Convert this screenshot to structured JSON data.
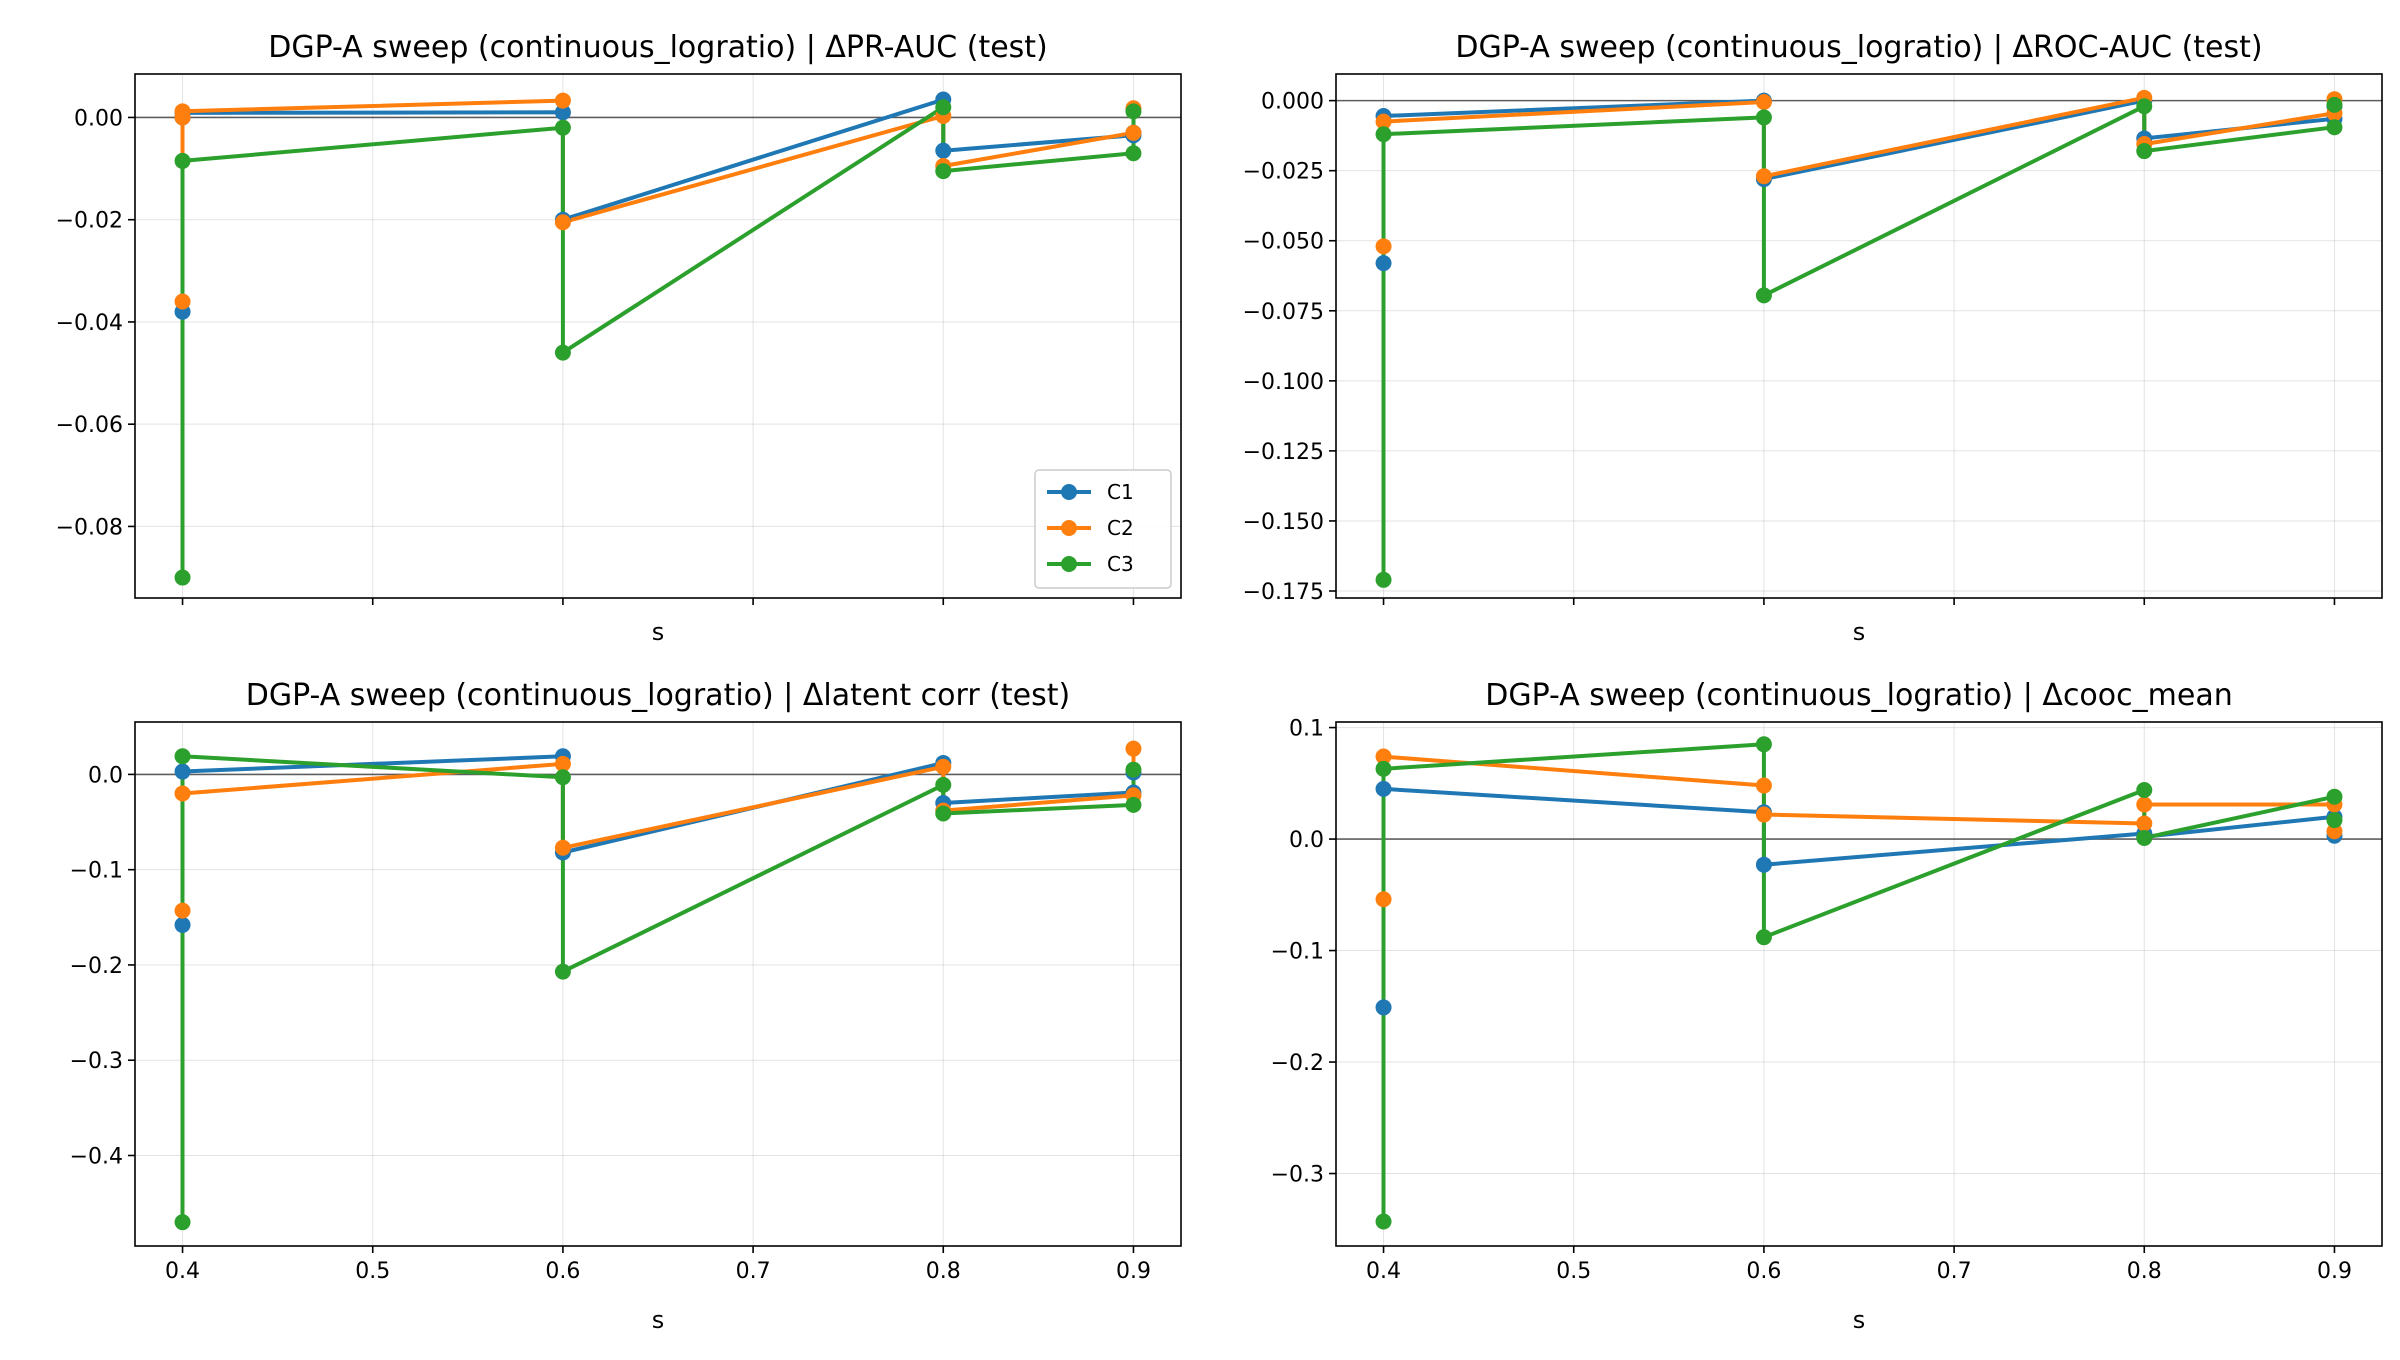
{
  "chart_data": [
    {
      "type": "line",
      "title": "DGP-A sweep (continuous_logratio) | ΔPR-AUC (test)",
      "xlabel": "s",
      "ylabel": "",
      "xlim": [
        0.375,
        0.925
      ],
      "ylim": [
        -0.094,
        0.0085
      ],
      "xticks": [
        0.4,
        0.5,
        0.6,
        0.7,
        0.8,
        0.9
      ],
      "xticklabels": [
        "",
        "",
        "",
        "",
        "",
        ""
      ],
      "yticks": [
        0.0,
        -0.02,
        -0.04,
        -0.06,
        -0.08
      ],
      "yticklabels": [
        "0.00",
        "−0.02",
        "−0.04",
        "−0.06",
        "−0.08"
      ],
      "grid": true,
      "hline": 0,
      "legend": {
        "position": "lower-right",
        "entries": [
          "C1",
          "C2",
          "C3"
        ]
      },
      "series": [
        {
          "name": "C1",
          "color": "#1f77b4",
          "x": [
            0.4,
            0.4,
            0.4,
            0.6,
            0.6,
            0.8,
            0.8,
            0.9,
            0.9
          ],
          "y": [
            -0.038,
            0.0,
            0.0009,
            0.001,
            -0.02,
            0.0035,
            -0.0065,
            -0.0035,
            -0.003
          ]
        },
        {
          "name": "C2",
          "color": "#ff7f0e",
          "x": [
            0.4,
            0.4,
            0.4,
            0.6,
            0.6,
            0.8,
            0.8,
            0.9,
            0.9
          ],
          "y": [
            -0.036,
            0.0,
            0.0012,
            0.0033,
            -0.0205,
            0.0003,
            -0.0095,
            -0.003,
            0.0018
          ]
        },
        {
          "name": "C3",
          "color": "#2ca02c",
          "x": [
            0.4,
            0.4,
            0.6,
            0.6,
            0.8,
            0.8,
            0.9,
            0.9
          ],
          "y": [
            -0.09,
            -0.0085,
            -0.002,
            -0.046,
            0.002,
            -0.0105,
            -0.007,
            0.0012
          ]
        }
      ]
    },
    {
      "type": "line",
      "title": "DGP-A sweep (continuous_logratio) | ΔROC-AUC (test)",
      "xlabel": "s",
      "ylabel": "",
      "xlim": [
        0.375,
        0.925
      ],
      "ylim": [
        -0.1775,
        0.0095
      ],
      "xticks": [
        0.4,
        0.5,
        0.6,
        0.7,
        0.8,
        0.9
      ],
      "xticklabels": [
        "",
        "",
        "",
        "",
        "",
        ""
      ],
      "yticks": [
        0.0,
        -0.025,
        -0.05,
        -0.075,
        -0.1,
        -0.125,
        -0.15,
        -0.175
      ],
      "yticklabels": [
        "0.000",
        "−0.025",
        "−0.050",
        "−0.075",
        "−0.100",
        "−0.125",
        "−0.150",
        "−0.175"
      ],
      "grid": true,
      "hline": 0,
      "series": [
        {
          "name": "C1",
          "color": "#1f77b4",
          "x": [
            0.4,
            0.4,
            0.6,
            0.6,
            0.8,
            0.8,
            0.9,
            0.9
          ],
          "y": [
            -0.058,
            -0.0055,
            0.0,
            -0.028,
            0.0,
            -0.0135,
            -0.0065,
            -0.002
          ]
        },
        {
          "name": "C2",
          "color": "#ff7f0e",
          "x": [
            0.4,
            0.4,
            0.6,
            0.6,
            0.8,
            0.8,
            0.9,
            0.9
          ],
          "y": [
            -0.052,
            -0.0075,
            -0.0005,
            -0.027,
            0.001,
            -0.0155,
            -0.0045,
            0.0005
          ]
        },
        {
          "name": "C3",
          "color": "#2ca02c",
          "x": [
            0.4,
            0.4,
            0.6,
            0.6,
            0.8,
            0.8,
            0.9,
            0.9
          ],
          "y": [
            -0.171,
            -0.012,
            -0.006,
            -0.0695,
            -0.002,
            -0.018,
            -0.0095,
            -0.0015
          ]
        }
      ]
    },
    {
      "type": "line",
      "title": "DGP-A sweep (continuous_logratio) | Δlatent corr (test)",
      "xlabel": "s",
      "ylabel": "",
      "xlim": [
        0.375,
        0.925
      ],
      "ylim": [
        -0.495,
        0.055
      ],
      "xticks": [
        0.4,
        0.5,
        0.6,
        0.7,
        0.8,
        0.9
      ],
      "xticklabels": [
        "0.4",
        "0.5",
        "0.6",
        "0.7",
        "0.8",
        "0.9"
      ],
      "yticks": [
        0.0,
        -0.1,
        -0.2,
        -0.3,
        -0.4
      ],
      "yticklabels": [
        "0.0",
        "−0.1",
        "−0.2",
        "−0.3",
        "−0.4"
      ],
      "grid": true,
      "hline": 0,
      "series": [
        {
          "name": "C1",
          "color": "#1f77b4",
          "x": [
            0.4,
            0.4,
            0.6,
            0.6,
            0.8,
            0.8,
            0.9,
            0.9
          ],
          "y": [
            -0.158,
            0.003,
            0.019,
            -0.082,
            0.012,
            -0.03,
            -0.019,
            0.002
          ]
        },
        {
          "name": "C2",
          "color": "#ff7f0e",
          "x": [
            0.4,
            0.4,
            0.6,
            0.6,
            0.8,
            0.8,
            0.9,
            0.9
          ],
          "y": [
            -0.143,
            -0.02,
            0.011,
            -0.077,
            0.008,
            -0.038,
            -0.022,
            0.027
          ]
        },
        {
          "name": "C3",
          "color": "#2ca02c",
          "x": [
            0.4,
            0.4,
            0.6,
            0.6,
            0.8,
            0.8,
            0.9,
            0.9
          ],
          "y": [
            -0.47,
            0.019,
            -0.003,
            -0.207,
            -0.011,
            -0.041,
            -0.032,
            0.005
          ]
        }
      ]
    },
    {
      "type": "line",
      "title": "DGP-A sweep (continuous_logratio) | Δcooc_mean",
      "xlabel": "s",
      "ylabel": "",
      "xlim": [
        0.375,
        0.925
      ],
      "ylim": [
        -0.365,
        0.105
      ],
      "xticks": [
        0.4,
        0.5,
        0.6,
        0.7,
        0.8,
        0.9
      ],
      "xticklabels": [
        "0.4",
        "0.5",
        "0.6",
        "0.7",
        "0.8",
        "0.9"
      ],
      "yticks": [
        0.1,
        0.0,
        -0.1,
        -0.2,
        -0.3
      ],
      "yticklabels": [
        "0.1",
        "0.0",
        "−0.1",
        "−0.2",
        "−0.3"
      ],
      "grid": true,
      "hline": 0,
      "series": [
        {
          "name": "C1",
          "color": "#1f77b4",
          "x": [
            0.4,
            0.4,
            0.6,
            0.6,
            0.8,
            0.8,
            0.9,
            0.9
          ],
          "y": [
            -0.151,
            0.045,
            0.024,
            -0.023,
            0.005,
            0.002,
            0.02,
            0.003
          ]
        },
        {
          "name": "C2",
          "color": "#ff7f0e",
          "x": [
            0.4,
            0.4,
            0.6,
            0.6,
            0.8,
            0.8,
            0.9,
            0.9
          ],
          "y": [
            -0.054,
            0.074,
            0.048,
            0.022,
            0.014,
            0.031,
            0.031,
            0.007
          ]
        },
        {
          "name": "C3",
          "color": "#2ca02c",
          "x": [
            0.4,
            0.4,
            0.6,
            0.6,
            0.8,
            0.8,
            0.9,
            0.9
          ],
          "y": [
            -0.343,
            0.063,
            0.085,
            -0.088,
            0.044,
            0.001,
            0.038,
            0.017
          ]
        }
      ]
    }
  ]
}
